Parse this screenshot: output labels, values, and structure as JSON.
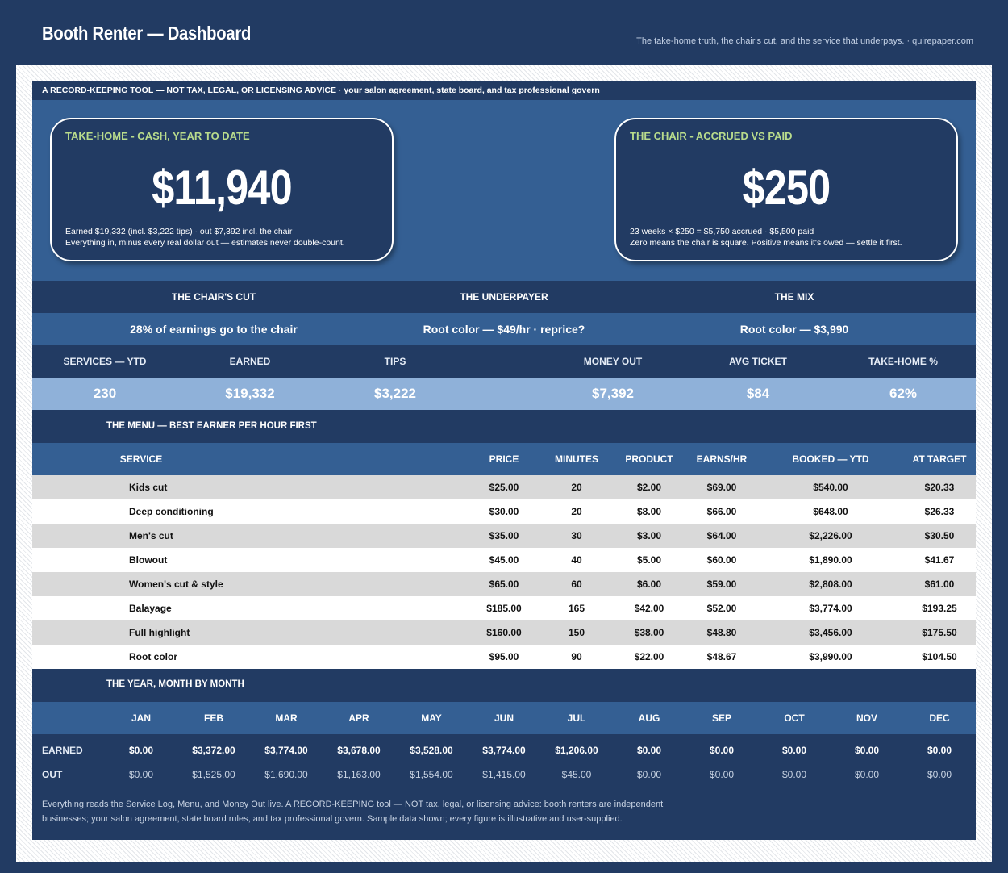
{
  "header": {
    "title": "Booth Renter — Dashboard",
    "tagline": "The take-home truth, the chair's cut, and the service that underpays.  ·  quirepaper.com"
  },
  "disclaimer": "A RECORD-KEEPING TOOL — NOT TAX, LEGAL, OR LICENSING ADVICE  ·  your salon agreement, state board, and tax professional govern",
  "cards": {
    "take_home": {
      "label": "TAKE-HOME - CASH, YEAR TO DATE",
      "value": "$11,940",
      "note1": "Earned $19,332 (incl. $3,222 tips)  ·  out $7,392 incl. the chair",
      "note2": "Everything in, minus every real dollar out — estimates never double-count."
    },
    "chair": {
      "label": "THE CHAIR - ACCRUED VS PAID",
      "value": "$250",
      "note1": "23 weeks × $250 = $5,750 accrued  ·  $5,500 paid",
      "note2": "Zero means the chair is square. Positive means it's owed — settle it first."
    }
  },
  "highlights": {
    "headers": [
      "THE CHAIR'S CUT",
      "THE UNDERPAYER",
      "THE MIX"
    ],
    "values": [
      "28% of earnings go to the chair",
      "Root color — $49/hr · reprice?",
      "Root color — $3,990"
    ]
  },
  "kpis": {
    "headers": [
      "SERVICES — YTD",
      "EARNED",
      "TIPS",
      "MONEY OUT",
      "AVG TICKET",
      "TAKE-HOME %"
    ],
    "values": [
      "230",
      "$19,332",
      "$3,222",
      "$7,392",
      "$84",
      "62%"
    ]
  },
  "menu": {
    "title": "THE MENU — BEST EARNER PER HOUR FIRST",
    "columns": [
      "SERVICE",
      "PRICE",
      "MINUTES",
      "PRODUCT",
      "EARNS/HR",
      "BOOKED — YTD",
      "AT TARGET"
    ],
    "rows": [
      [
        "Kids cut",
        "$25.00",
        "20",
        "$2.00",
        "$69.00",
        "$540.00",
        "$20.33"
      ],
      [
        "Deep conditioning",
        "$30.00",
        "20",
        "$8.00",
        "$66.00",
        "$648.00",
        "$26.33"
      ],
      [
        "Men's cut",
        "$35.00",
        "30",
        "$3.00",
        "$64.00",
        "$2,226.00",
        "$30.50"
      ],
      [
        "Blowout",
        "$45.00",
        "40",
        "$5.00",
        "$60.00",
        "$1,890.00",
        "$41.67"
      ],
      [
        "Women's cut & style",
        "$65.00",
        "60",
        "$6.00",
        "$59.00",
        "$2,808.00",
        "$61.00"
      ],
      [
        "Balayage",
        "$185.00",
        "165",
        "$42.00",
        "$52.00",
        "$3,774.00",
        "$193.25"
      ],
      [
        "Full highlight",
        "$160.00",
        "150",
        "$38.00",
        "$48.80",
        "$3,456.00",
        "$175.50"
      ],
      [
        "Root color",
        "$95.00",
        "90",
        "$22.00",
        "$48.67",
        "$3,990.00",
        "$104.50"
      ]
    ]
  },
  "year": {
    "title": "THE YEAR, MONTH BY MONTH",
    "months": [
      "JAN",
      "FEB",
      "MAR",
      "APR",
      "MAY",
      "JUN",
      "JUL",
      "AUG",
      "SEP",
      "OCT",
      "NOV",
      "DEC"
    ],
    "earned_label": "EARNED",
    "earned": [
      "$0.00",
      "$3,372.00",
      "$3,774.00",
      "$3,678.00",
      "$3,528.00",
      "$3,774.00",
      "$1,206.00",
      "$0.00",
      "$0.00",
      "$0.00",
      "$0.00",
      "$0.00"
    ],
    "out_label": "OUT",
    "out": [
      "$0.00",
      "$1,525.00",
      "$1,690.00",
      "$1,163.00",
      "$1,554.00",
      "$1,415.00",
      "$45.00",
      "$0.00",
      "$0.00",
      "$0.00",
      "$0.00",
      "$0.00"
    ]
  },
  "footnote": "Everything reads the Service Log, Menu, and Money Out live. A RECORD-KEEPING tool — NOT tax, legal, or licensing advice: booth renters are independent businesses; your salon agreement, state board rules, and tax professional govern. Sample data shown; every figure is illustrative and user-supplied."
}
